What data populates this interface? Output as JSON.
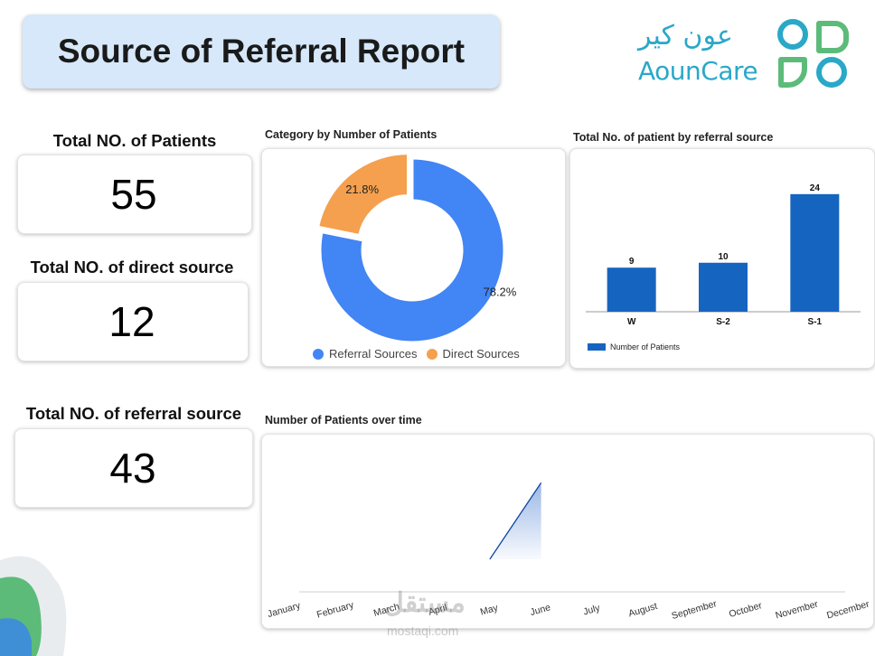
{
  "header": {
    "title": "Source of Referral Report"
  },
  "logo": {
    "arabic": "عون كير",
    "english": "AounCare"
  },
  "kpis": {
    "total_patients": {
      "label": "Total NO. of Patients",
      "value": "55"
    },
    "direct_source": {
      "label": "Total NO. of direct source",
      "value": "12"
    },
    "referral_source": {
      "label": "Total NO. of referral source",
      "value": "43"
    }
  },
  "colors": {
    "blue": "#4285f4",
    "orange": "#f4a04f",
    "bar": "#1565c0",
    "line": "#0d47a1"
  },
  "watermark": {
    "arabic": "مستقل",
    "latin": "mostaqi.com"
  },
  "chart_data": [
    {
      "type": "pie",
      "title": "Category by Number of Patients",
      "donut": true,
      "labels": [
        "Referral Sources",
        "Direct Sources"
      ],
      "values": [
        78.2,
        21.8
      ],
      "value_labels": [
        "78.2%",
        "21.8%"
      ],
      "legend": "bottom"
    },
    {
      "type": "bar",
      "title": "Total No. of patient by referral source",
      "categories": [
        "W",
        "S-2",
        "S-1"
      ],
      "values": [
        9,
        10,
        24
      ],
      "series_name": "Number of Patients",
      "ylim": [
        0,
        26
      ],
      "legend": "bottom-left"
    },
    {
      "type": "area",
      "title": "Number of Patients over time",
      "categories": [
        "January",
        "February",
        "March",
        "April",
        "May",
        "June",
        "July",
        "August",
        "September",
        "October",
        "November",
        "December"
      ],
      "values": [
        null,
        null,
        null,
        null,
        0,
        1,
        null,
        null,
        null,
        null,
        null,
        null
      ],
      "ylim": [
        -0.25,
        1.05
      ]
    }
  ]
}
